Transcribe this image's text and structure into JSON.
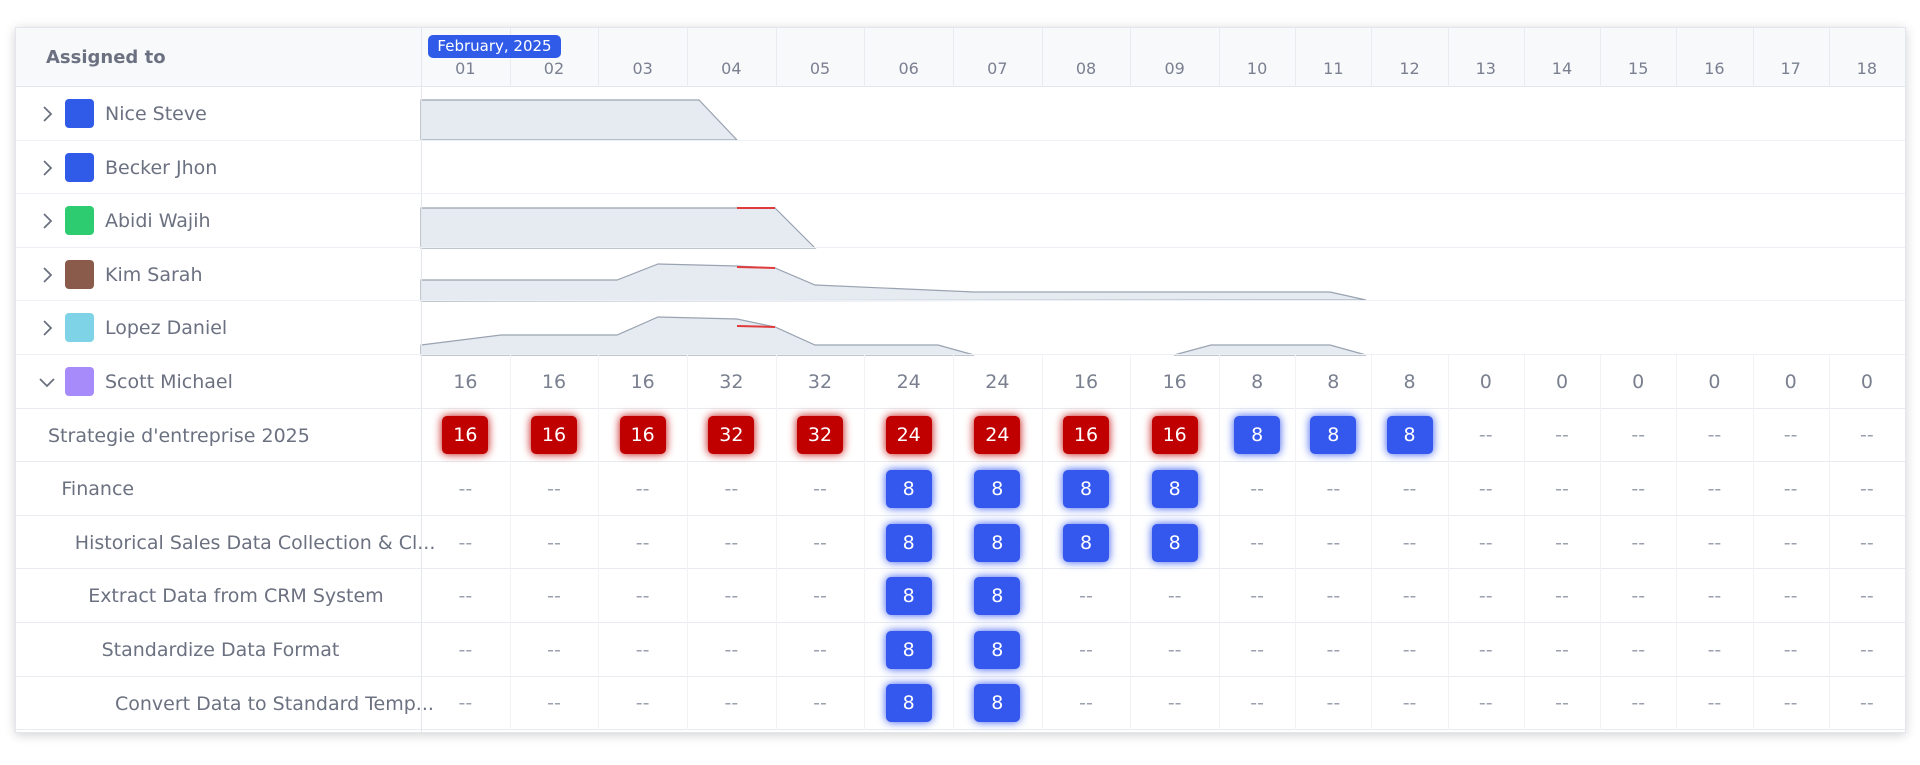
{
  "header": {
    "column_title": "Assigned to",
    "month": "February, 2025",
    "days": [
      "01",
      "02",
      "03",
      "04",
      "05",
      "06",
      "07",
      "08",
      "09",
      "10",
      "11",
      "12",
      "13",
      "14",
      "15",
      "16",
      "17",
      "18"
    ]
  },
  "rows": [
    {
      "label": "Nice Steve",
      "level": 0,
      "expanded": false,
      "avatar_color": "#2f5be8"
    },
    {
      "label": "Becker Jhon",
      "level": 0,
      "expanded": false,
      "avatar_color": "#2f5be8"
    },
    {
      "label": "Abidi Wajih",
      "level": 0,
      "expanded": false,
      "avatar_color": "#2ecc71"
    },
    {
      "label": "Kim Sarah",
      "level": 0,
      "expanded": false,
      "avatar_color": "#8a5a4a"
    },
    {
      "label": "Lopez Daniel",
      "level": 0,
      "expanded": false,
      "avatar_color": "#7fd3e6"
    },
    {
      "label": "Scott Michael",
      "level": 0,
      "expanded": true,
      "avatar_color": "#a78bfa",
      "cells": [
        16,
        16,
        16,
        32,
        32,
        24,
        24,
        16,
        16,
        8,
        8,
        8,
        0,
        0,
        0,
        0,
        0,
        0
      ]
    },
    {
      "label": "Strategie d'entreprise 2025",
      "level": 1,
      "cells": [
        16,
        16,
        16,
        32,
        32,
        24,
        24,
        16,
        16,
        8,
        8,
        8,
        "--",
        "--",
        "--",
        "--",
        "--",
        "--"
      ],
      "cell_colors": [
        "#c00000",
        "#c00000",
        "#c00000",
        "#c00000",
        "#c00000",
        "#c00000",
        "#c00000",
        "#c00000",
        "#c00000",
        "#3457ee",
        "#3457ee",
        "#3457ee",
        null,
        null,
        null,
        null,
        null,
        null
      ]
    },
    {
      "label": "Finance",
      "level": 2,
      "cells": [
        "--",
        "--",
        "--",
        "--",
        "--",
        8,
        8,
        8,
        8,
        "--",
        "--",
        "--",
        "--",
        "--",
        "--",
        "--",
        "--",
        "--"
      ],
      "cell_colors": [
        null,
        null,
        null,
        null,
        null,
        "#3457ee",
        "#3457ee",
        "#3457ee",
        "#3457ee",
        null,
        null,
        null,
        null,
        null,
        null,
        null,
        null,
        null
      ]
    },
    {
      "label": "Historical Sales Data Collection & Cl...",
      "level": 3,
      "cells": [
        "--",
        "--",
        "--",
        "--",
        "--",
        8,
        8,
        8,
        8,
        "--",
        "--",
        "--",
        "--",
        "--",
        "--",
        "--",
        "--",
        "--"
      ],
      "cell_colors": [
        null,
        null,
        null,
        null,
        null,
        "#3457ee",
        "#3457ee",
        "#3457ee",
        "#3457ee",
        null,
        null,
        null,
        null,
        null,
        null,
        null,
        null,
        null
      ]
    },
    {
      "label": "Extract Data from CRM System",
      "level": 4,
      "cells": [
        "--",
        "--",
        "--",
        "--",
        "--",
        8,
        8,
        "--",
        "--",
        "--",
        "--",
        "--",
        "--",
        "--",
        "--",
        "--",
        "--",
        "--"
      ],
      "cell_colors": [
        null,
        null,
        null,
        null,
        null,
        "#3457ee",
        "#3457ee",
        null,
        null,
        null,
        null,
        null,
        null,
        null,
        null,
        null,
        null,
        null
      ]
    },
    {
      "label": "Standardize Data Format",
      "level": 5,
      "cells": [
        "--",
        "--",
        "--",
        "--",
        "--",
        8,
        8,
        "--",
        "--",
        "--",
        "--",
        "--",
        "--",
        "--",
        "--",
        "--",
        "--",
        "--"
      ],
      "cell_colors": [
        null,
        null,
        null,
        null,
        null,
        "#3457ee",
        "#3457ee",
        null,
        null,
        null,
        null,
        null,
        null,
        null,
        null,
        null,
        null,
        null
      ]
    },
    {
      "label": "Convert Data to Standard Temp...",
      "level": 6,
      "cells": [
        "--",
        "--",
        "--",
        "--",
        "--",
        8,
        8,
        "--",
        "--",
        "--",
        "--",
        "--",
        "--",
        "--",
        "--",
        "--",
        "--",
        "--"
      ],
      "cell_colors": [
        null,
        null,
        null,
        null,
        null,
        "#3457ee",
        "#3457ee",
        null,
        null,
        null,
        null,
        null,
        null,
        null,
        null,
        null,
        null,
        null
      ]
    }
  ]
}
